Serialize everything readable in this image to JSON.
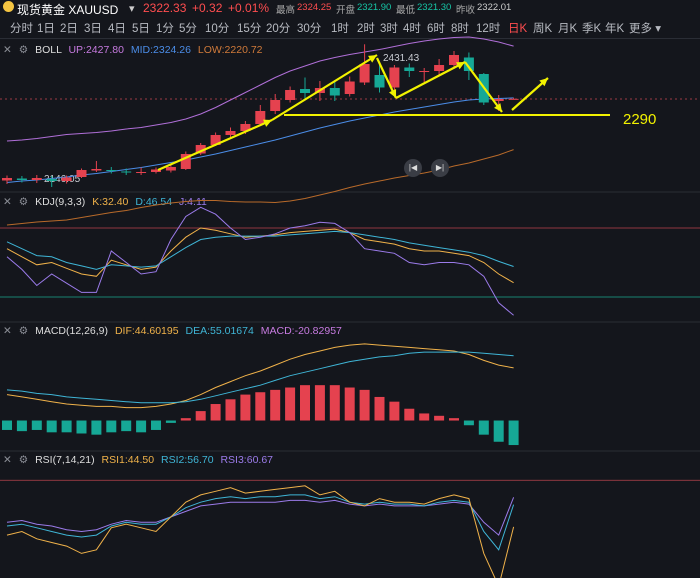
{
  "header": {
    "title": "现货黄金 XAUUSD",
    "price": "2322.33",
    "change": "+0.32",
    "change_pct": "+0.01%",
    "high_label": "最高",
    "high": "2324.25",
    "open_label": "开盘",
    "open": "2321.90",
    "low_label": "最低",
    "low": "2321.30",
    "prev_label": "昨收",
    "prev": "2322.01"
  },
  "tabs": [
    "分时",
    "1日",
    "2日",
    "3日",
    "4日",
    "5日",
    "1分",
    "5分",
    "10分",
    "15分",
    "20分",
    "30分",
    "1时",
    "2时",
    "3时",
    "4时",
    "6时",
    "8时",
    "12时",
    "日K",
    "周K",
    "月K",
    "季K",
    "年K",
    "更多"
  ],
  "active_tab": "日K",
  "indicators": {
    "boll": {
      "name": "BOLL",
      "up": "UP:2427.80",
      "mid": "MID:2324.26",
      "low": "LOW:2220.72"
    },
    "kdj": {
      "name": "KDJ(9,3,3)",
      "k": "K:32.40",
      "d": "D:46.54",
      "j": "J:4.11"
    },
    "macd": {
      "name": "MACD(12,26,9)",
      "dif": "DIF:44.60195",
      "dea": "DEA:55.01674",
      "macd": "MACD:-20.82957"
    },
    "rsi": {
      "name": "RSI(7,14,21)",
      "rsi1": "RSI1:44.50",
      "rsi2": "RSI2:56.70",
      "rsi3": "RSI3:60.67"
    }
  },
  "annotations": {
    "support_level": "2290",
    "max_label": "2431.43",
    "min_label": "2146.05"
  },
  "colors": {
    "up": "#e5424f",
    "down": "#16a896",
    "boll_up": "#b06fd8",
    "boll_mid": "#4b8de8",
    "boll_low": "#b86a2a",
    "k": "#f0b24a",
    "d": "#3fb5d6",
    "j": "#9b7bea",
    "annotation": "#f2f200"
  },
  "chart_data": {
    "type": "candlestick",
    "candles": [
      {
        "o": 2159,
        "c": 2164,
        "h": 2169,
        "l": 2152
      },
      {
        "o": 2163,
        "c": 2160,
        "h": 2168,
        "l": 2155
      },
      {
        "o": 2160,
        "c": 2164,
        "h": 2170,
        "l": 2154
      },
      {
        "o": 2162,
        "c": 2158,
        "h": 2168,
        "l": 2146
      },
      {
        "o": 2158,
        "c": 2165,
        "h": 2169,
        "l": 2153
      },
      {
        "o": 2166,
        "c": 2180,
        "h": 2183,
        "l": 2164
      },
      {
        "o": 2179,
        "c": 2182,
        "h": 2198,
        "l": 2176
      },
      {
        "o": 2180,
        "c": 2178,
        "h": 2186,
        "l": 2173
      },
      {
        "o": 2177,
        "c": 2175,
        "h": 2183,
        "l": 2170
      },
      {
        "o": 2175,
        "c": 2176,
        "h": 2185,
        "l": 2170
      },
      {
        "o": 2176,
        "c": 2181,
        "h": 2185,
        "l": 2173
      },
      {
        "o": 2179,
        "c": 2186,
        "h": 2189,
        "l": 2175
      },
      {
        "o": 2182,
        "c": 2212,
        "h": 2217,
        "l": 2180
      },
      {
        "o": 2213,
        "c": 2230,
        "h": 2234,
        "l": 2210
      },
      {
        "o": 2230,
        "c": 2250,
        "h": 2255,
        "l": 2228
      },
      {
        "o": 2250,
        "c": 2258,
        "h": 2265,
        "l": 2245
      },
      {
        "o": 2258,
        "c": 2272,
        "h": 2278,
        "l": 2252
      },
      {
        "o": 2272,
        "c": 2298,
        "h": 2310,
        "l": 2268
      },
      {
        "o": 2298,
        "c": 2320,
        "h": 2332,
        "l": 2292
      },
      {
        "o": 2320,
        "c": 2340,
        "h": 2347,
        "l": 2315
      },
      {
        "o": 2342,
        "c": 2334,
        "h": 2365,
        "l": 2320
      },
      {
        "o": 2334,
        "c": 2344,
        "h": 2358,
        "l": 2318
      },
      {
        "o": 2344,
        "c": 2329,
        "h": 2360,
        "l": 2318
      },
      {
        "o": 2332,
        "c": 2357,
        "h": 2367,
        "l": 2327
      },
      {
        "o": 2355,
        "c": 2392,
        "h": 2431.43,
        "l": 2350
      },
      {
        "o": 2370,
        "c": 2345,
        "h": 2395,
        "l": 2335
      },
      {
        "o": 2345,
        "c": 2385,
        "h": 2390,
        "l": 2338
      },
      {
        "o": 2385,
        "c": 2378,
        "h": 2393,
        "l": 2366
      },
      {
        "o": 2377,
        "c": 2378,
        "h": 2384,
        "l": 2356
      },
      {
        "o": 2378,
        "c": 2390,
        "h": 2402,
        "l": 2371
      },
      {
        "o": 2390,
        "c": 2410,
        "h": 2418,
        "l": 2382
      },
      {
        "o": 2405,
        "c": 2378,
        "h": 2415,
        "l": 2360
      },
      {
        "o": 2372,
        "c": 2315,
        "h": 2374,
        "l": 2310
      },
      {
        "o": 2318,
        "c": 2322,
        "h": 2330,
        "l": 2298
      },
      {
        "o": 2322,
        "c": 2322.33,
        "h": 2324.25,
        "l": 2321.3
      }
    ],
    "boll_up": [
      2238,
      2240,
      2243,
      2247,
      2251,
      2253,
      2255,
      2258,
      2262,
      2265,
      2270,
      2275,
      2282,
      2292,
      2305,
      2320,
      2335,
      2350,
      2365,
      2378,
      2388,
      2398,
      2405,
      2411,
      2416,
      2421,
      2427,
      2433,
      2438,
      2442,
      2445,
      2446,
      2442,
      2436,
      2427.8
    ],
    "boll_mid": [
      2155,
      2158,
      2160,
      2163,
      2166,
      2170,
      2173,
      2177,
      2181,
      2185,
      2190,
      2195,
      2200,
      2206,
      2212,
      2219,
      2226,
      2233,
      2240,
      2248,
      2256,
      2264,
      2271,
      2278,
      2284,
      2290,
      2296,
      2301,
      2306,
      2311,
      2316,
      2320,
      2322,
      2323,
      2324.26
    ],
    "boll_low": [
      2070,
      2073,
      2076,
      2078,
      2080,
      2085,
      2090,
      2095,
      2099,
      2105,
      2110,
      2114,
      2117,
      2119,
      2119,
      2117,
      2116,
      2116,
      2115,
      2118,
      2123,
      2130,
      2137,
      2145,
      2152,
      2158,
      2164,
      2169,
      2174,
      2180,
      2188,
      2194,
      2202,
      2210,
      2220.72
    ],
    "y_range": [
      2140,
      2440
    ],
    "support": 2290,
    "kdj": {
      "k": [
        62,
        55,
        48,
        50,
        45,
        40,
        38,
        52,
        48,
        44,
        46,
        60,
        72,
        80,
        78,
        75,
        72,
        73,
        74,
        76,
        77,
        78,
        79,
        76,
        70,
        68,
        66,
        62,
        60,
        60,
        58,
        56,
        50,
        40,
        32.4
      ],
      "d": [
        68,
        62,
        56,
        55,
        50,
        47,
        44,
        48,
        47,
        46,
        47,
        55,
        63,
        70,
        72,
        73,
        73,
        73,
        73,
        74,
        75,
        76,
        77,
        76,
        74,
        72,
        70,
        67,
        65,
        63,
        61,
        59,
        56,
        51,
        46.5
      ],
      "j": [
        55,
        44,
        30,
        40,
        32,
        24,
        24,
        60,
        50,
        40,
        42,
        70,
        90,
        98,
        92,
        80,
        70,
        72,
        75,
        80,
        82,
        85,
        84,
        76,
        62,
        60,
        58,
        50,
        48,
        50,
        50,
        48,
        38,
        15,
        4.1
      ],
      "range": [
        0,
        100
      ],
      "upper": 80,
      "lower": 20
    },
    "macd": {
      "dif": [
        22,
        20,
        18,
        16,
        14,
        13,
        12,
        12,
        11,
        11,
        12,
        14,
        17,
        22,
        28,
        33,
        38,
        42,
        47,
        52,
        56,
        59,
        62,
        64,
        65,
        64,
        63,
        62,
        61,
        60,
        59,
        56,
        51,
        47,
        44.6
      ],
      "dea": [
        26,
        25,
        23,
        22,
        20,
        19,
        18,
        17,
        16,
        15,
        15,
        15,
        16,
        18,
        21,
        24,
        27,
        30,
        34,
        38,
        41,
        44,
        47,
        50,
        52,
        54,
        55,
        57,
        58,
        58,
        58,
        58,
        57,
        56,
        55.0
      ],
      "hist": [
        -8,
        -9,
        -8,
        -10,
        -10,
        -11,
        -12,
        -10,
        -9,
        -10,
        -8,
        -2,
        2,
        8,
        14,
        18,
        22,
        24,
        26,
        28,
        30,
        30,
        30,
        28,
        26,
        20,
        16,
        10,
        6,
        4,
        2,
        -4,
        -12,
        -18,
        -20.8
      ],
      "range": [
        -25,
        70
      ]
    },
    "rsi": {
      "r1": [
        40,
        42,
        38,
        36,
        34,
        30,
        32,
        44,
        46,
        44,
        42,
        50,
        58,
        62,
        64,
        66,
        63,
        64,
        65,
        66,
        67,
        62,
        64,
        58,
        56,
        60,
        58,
        58,
        57,
        60,
        62,
        60,
        30,
        12,
        44.5
      ],
      "r2": [
        45,
        46,
        44,
        42,
        40,
        39,
        40,
        45,
        47,
        46,
        46,
        50,
        55,
        58,
        60,
        61,
        60,
        61,
        61,
        62,
        62,
        60,
        61,
        58,
        57,
        58,
        57,
        57,
        56,
        58,
        59,
        58,
        42,
        32,
        56.7
      ],
      "r3": [
        47,
        48,
        46,
        45,
        43,
        42,
        43,
        46,
        48,
        47,
        47,
        50,
        53,
        56,
        57,
        58,
        58,
        58,
        58,
        59,
        59,
        58,
        59,
        57,
        56,
        57,
        56,
        56,
        56,
        57,
        58,
        57,
        47,
        40,
        60.7
      ],
      "range": [
        10,
        80
      ],
      "upper": 70
    }
  }
}
